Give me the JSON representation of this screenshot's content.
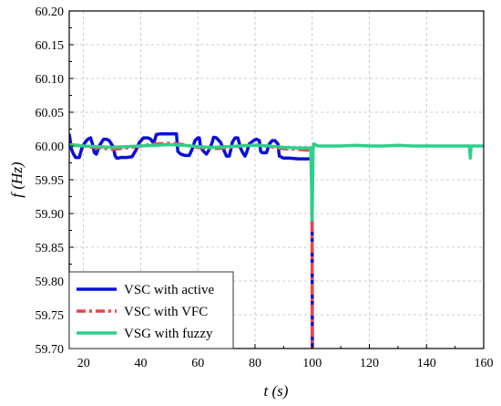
{
  "chart_data": {
    "type": "line",
    "xlabel": "t (s)",
    "ylabel": "f (Hz)",
    "xlim": [
      15,
      160
    ],
    "ylim": [
      59.7,
      60.2
    ],
    "x_ticks": [
      "20",
      "40",
      "60",
      "80",
      "100",
      "120",
      "140",
      "160"
    ],
    "y_ticks": [
      "59.70",
      "59.75",
      "59.80",
      "59.85",
      "59.90",
      "59.95",
      "60.00",
      "60.05",
      "60.10",
      "60.15",
      "60.20"
    ],
    "grid": true,
    "legend_position": "bottom-left",
    "series": [
      {
        "name": "VSC with active",
        "color": "#0a10d8",
        "style": "solid",
        "x": [
          15,
          15.8,
          16.5,
          17.2,
          18.5,
          19.5,
          20.5,
          21.5,
          22.5,
          23.2,
          23.8,
          24.5,
          25.5,
          27,
          28,
          29,
          30.5,
          31,
          31.6,
          32.2,
          33,
          35,
          37,
          38.5,
          39.5,
          41,
          42.5,
          43.5,
          44.5,
          45,
          45.5,
          47,
          50,
          52.5,
          53,
          54,
          55.5,
          57,
          58,
          59,
          60,
          60.5,
          61,
          62,
          63,
          64,
          65,
          65.5,
          66.5,
          68,
          69,
          70,
          71,
          71.5,
          72,
          73,
          74,
          75,
          76,
          76.5,
          77,
          78,
          79.5,
          80.5,
          81.5,
          82,
          82.5,
          84,
          85,
          86,
          87,
          88,
          88.5,
          90,
          92,
          95,
          98,
          99.5,
          99.8,
          100,
          100.05
        ],
        "y": [
          60.018,
          59.995,
          59.988,
          59.983,
          59.983,
          59.998,
          60.005,
          60.01,
          60.012,
          60.002,
          59.99,
          59.988,
          60.0,
          60.01,
          60.01,
          60.008,
          59.998,
          59.986,
          59.982,
          59.982,
          59.983,
          59.983,
          59.984,
          59.995,
          60.005,
          60.012,
          60.012,
          60.01,
          60.004,
          60.01,
          60.017,
          60.018,
          60.018,
          60.018,
          59.992,
          59.988,
          59.986,
          59.986,
          59.995,
          60.008,
          60.012,
          60.012,
          59.998,
          59.992,
          59.988,
          59.995,
          60.005,
          60.013,
          60.012,
          60.005,
          59.995,
          59.985,
          59.985,
          59.994,
          60.005,
          60.012,
          60.012,
          59.996,
          59.988,
          59.985,
          59.99,
          60.003,
          60.008,
          60.01,
          60.008,
          59.992,
          59.99,
          59.99,
          60.003,
          60.008,
          60.008,
          60.003,
          59.985,
          59.982,
          59.982,
          59.981,
          59.981,
          59.981,
          59.981,
          59.87,
          59.7
        ]
      },
      {
        "name": "VSC with VFC",
        "color": "#ef4444",
        "style": "dashdot",
        "x": [
          15,
          20,
          25,
          30,
          35,
          40,
          45,
          50,
          55,
          60,
          65,
          70,
          75,
          80,
          85,
          90,
          95,
          98,
          99.5,
          99.9,
          100.0,
          100.05
        ],
        "y": [
          60.002,
          60.0,
          59.997,
          59.995,
          59.997,
          60.0,
          60.003,
          60.004,
          60.002,
          59.998,
          59.996,
          59.997,
          60.0,
          60.002,
          59.999,
          59.996,
          59.995,
          59.994,
          59.993,
          59.993,
          59.86,
          59.7
        ]
      },
      {
        "name": "VSG with fuzzy",
        "color": "#2ecf8a",
        "style": "solid",
        "x": [
          15,
          20,
          25,
          30,
          35,
          40,
          45,
          50,
          55,
          60,
          65,
          70,
          75,
          80,
          85,
          90,
          95,
          98,
          99.5,
          100,
          100.3,
          100.6,
          101,
          102,
          105,
          110,
          115,
          120,
          125,
          130,
          135,
          140,
          145,
          150,
          154,
          155,
          155.3,
          155.6,
          156,
          160
        ],
        "y": [
          60.001,
          60.0,
          59.999,
          59.998,
          59.999,
          60.0,
          60.001,
          60.002,
          60.001,
          59.999,
          59.998,
          59.999,
          60.0,
          60.001,
          60.0,
          59.998,
          59.997,
          59.997,
          59.997,
          59.89,
          59.995,
          60.003,
          60.002,
          60.0,
          60.0,
          60.0,
          60.001,
          60.0,
          60.0,
          60.001,
          60.0,
          60.0,
          60.0,
          60.0,
          60.0,
          60.0,
          59.982,
          60.0,
          60.0,
          60.0
        ]
      }
    ]
  }
}
